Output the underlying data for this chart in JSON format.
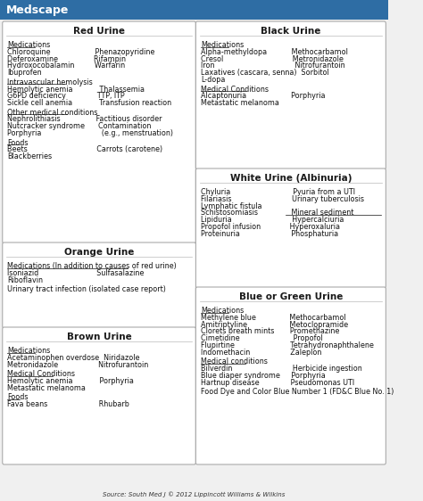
{
  "title": "Medscape",
  "title_bg": "#2e6da4",
  "title_text_color": "white",
  "source_text": "Source: South Med J © 2012 Lippincott Williams & Wilkins",
  "bg_color": "#f0f0f0",
  "box_bg": "white",
  "box_border": "#aaaaaa",
  "header_text_color": "#1a1a1a",
  "sections": [
    {
      "title": "Red Urine",
      "col": 0,
      "row": 0,
      "lines": [
        {
          "text": "Medications",
          "style": "underline"
        },
        {
          "text": "Chloroquine                    Phenazopyridine"
        },
        {
          "text": "Deferoxamine                Rifampin"
        },
        {
          "text": "Hydroxocobalamin         Warfarin"
        },
        {
          "text": "Ibuprofen"
        },
        {
          "text": ""
        },
        {
          "text": "Intravascular hemolysis",
          "style": "underline"
        },
        {
          "text": "Hemolytic anemia            Thalassemia"
        },
        {
          "text": "G6PD deficiency              TTP, ITP"
        },
        {
          "text": "Sickle cell anemia            Transfusion reaction"
        },
        {
          "text": ""
        },
        {
          "text": "Other medical conditions",
          "style": "underline"
        },
        {
          "text": "Nephrolithiasis                Factitious disorder"
        },
        {
          "text": "Nutcracker syndrome      Contamination"
        },
        {
          "text": "Porphyria                           (e.g., menstruation)"
        },
        {
          "text": ""
        },
        {
          "text": "Foods",
          "style": "underline"
        },
        {
          "text": "Beets                               Carrots (carotene)"
        },
        {
          "text": "Blackberries"
        }
      ]
    },
    {
      "title": "Black Urine",
      "col": 1,
      "row": 0,
      "lines": [
        {
          "text": "Medications",
          "style": "underline"
        },
        {
          "text": "Alpha-methyldopa           Methocarbamol"
        },
        {
          "text": "Cresol                               Metronidazole"
        },
        {
          "text": "Iron                                    Nitrofurantoin"
        },
        {
          "text": "Laxatives (cascara, senna)  Sorbitol"
        },
        {
          "text": "L-dopa"
        },
        {
          "text": ""
        },
        {
          "text": "Medical Conditions",
          "style": "underline"
        },
        {
          "text": "Alcaptonuria                    Porphyria"
        },
        {
          "text": "Metastatic melanoma"
        }
      ]
    },
    {
      "title": "Orange Urine",
      "col": 0,
      "row": 1,
      "lines": [
        {
          "text": "Medications (In addition to causes of red urine)",
          "style": "underline"
        },
        {
          "text": "Isoniazid                          Sulfasalazine"
        },
        {
          "text": "Riboflavin"
        },
        {
          "text": ""
        },
        {
          "text": "Urinary tract infection (isolated case report)"
        }
      ]
    },
    {
      "title": "White Urine (Albinuria)",
      "col": 1,
      "row": 1,
      "lines": [
        {
          "text": "Chyluria                            Pyuria from a UTI"
        },
        {
          "text": "Filariasis                           Urinary tuberculosis"
        },
        {
          "text": "Lymphatic fistula"
        },
        {
          "text": "Schistosomiasis               Mineral sediment",
          "style2": "underline_right"
        },
        {
          "text": "Lipiduria                           Hypercalciuria"
        },
        {
          "text": "Propofol infusion             Hyperoxaluria"
        },
        {
          "text": "Proteinuria                       Phosphaturia"
        }
      ]
    },
    {
      "title": "Brown Urine",
      "col": 0,
      "row": 2,
      "lines": [
        {
          "text": "Medications",
          "style": "underline"
        },
        {
          "text": "Acetaminophen overdose  Niridazole"
        },
        {
          "text": "Metronidazole                  Nitrofurantoin"
        },
        {
          "text": ""
        },
        {
          "text": "Medical Conditions",
          "style": "underline"
        },
        {
          "text": "Hemolytic anemia            Porphyria"
        },
        {
          "text": "Metastatic melanoma"
        },
        {
          "text": ""
        },
        {
          "text": "Foods",
          "style": "underline"
        },
        {
          "text": "Fava beans                       Rhubarb"
        }
      ]
    },
    {
      "title": "Blue or Green Urine",
      "col": 1,
      "row": 2,
      "lines": [
        {
          "text": "Medications",
          "style": "underline"
        },
        {
          "text": "Methylene blue               Methocarbamol"
        },
        {
          "text": "Amitriptyline                   Metoclopramide"
        },
        {
          "text": "Clorets breath mints       Promethazine"
        },
        {
          "text": "Cimetidine                        Propofol"
        },
        {
          "text": "Flupirtine                         Tetrahydronaphthalene"
        },
        {
          "text": "Indomethacin                  Zaleplon"
        },
        {
          "text": ""
        },
        {
          "text": "Medical conditions",
          "style": "underline"
        },
        {
          "text": "Bilverdin                           Herbicide ingestion"
        },
        {
          "text": "Blue diaper syndrome     Porphyria"
        },
        {
          "text": "Hartnup disease              Pseudomonas UTI"
        },
        {
          "text": ""
        },
        {
          "text": "Food Dye and Color Blue Number 1 (FD&C Blue No. 1)"
        }
      ]
    }
  ]
}
